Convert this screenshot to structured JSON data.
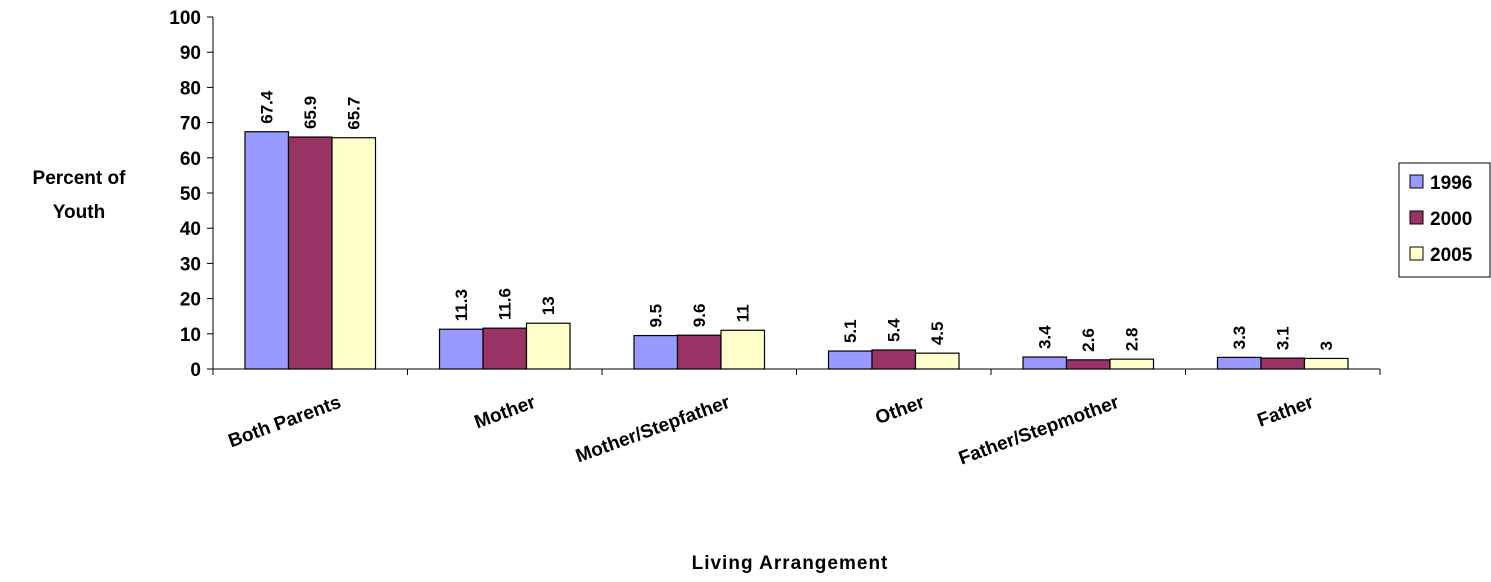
{
  "chart_data": {
    "type": "bar",
    "title": "",
    "xlabel": "Living Arrangement",
    "ylabel_lines": [
      "Percent of",
      "Youth"
    ],
    "ylim": [
      0,
      100
    ],
    "yticks": [
      0,
      10,
      20,
      30,
      40,
      50,
      60,
      70,
      80,
      90,
      100
    ],
    "categories": [
      "Both Parents",
      "Mother",
      "Mother/Stepfather",
      "Other",
      "Father/Stepmother",
      "Father"
    ],
    "series": [
      {
        "name": "1996",
        "color": "#9999ff",
        "values": [
          67.4,
          11.3,
          9.5,
          5.1,
          3.4,
          3.3
        ]
      },
      {
        "name": "2000",
        "color": "#993366",
        "values": [
          65.9,
          11.6,
          9.6,
          5.4,
          2.6,
          3.1
        ]
      },
      {
        "name": "2005",
        "color": "#ffffcc",
        "values": [
          65.7,
          13,
          11,
          4.5,
          2.8,
          3
        ]
      }
    ],
    "legend_position": "right",
    "grid": false
  }
}
